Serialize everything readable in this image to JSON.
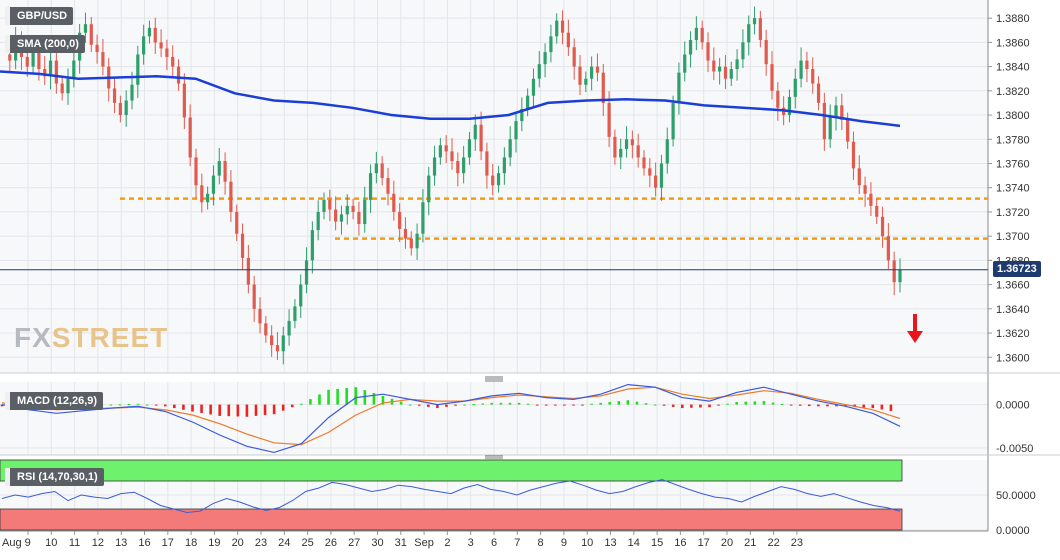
{
  "legend": {
    "pair": "GBP/USD",
    "sma": "SMA (200,0)",
    "macd": "MACD (12,26,9)",
    "rsi": "RSI (14,70,30,1)"
  },
  "watermark": {
    "brand_fx": "FX",
    "brand_street": "STREET"
  },
  "current_price": "1.36723",
  "colors": {
    "bull": "#2e9e6b",
    "bear": "#e05a4e",
    "sma": "#1a3ed6",
    "level": "#f39c12",
    "macd_line": "#3b5bdb",
    "signal_line": "#f07a2a",
    "hist_pos": "#22dd22",
    "hist_neg": "#ee2222",
    "rsi_line": "#3b5bdb",
    "overbought_fill": "#6ef26e",
    "oversold_fill": "#f47a7a",
    "arrow": "#e8151b"
  },
  "chart_data": [
    {
      "type": "candlestick",
      "title": "GBP/USD",
      "x_tick_labels": [
        "Aug 9",
        "10",
        "11",
        "12",
        "13",
        "16",
        "17",
        "18",
        "19",
        "20",
        "23",
        "24",
        "25",
        "26",
        "27",
        "30",
        "31",
        "Sep",
        "2",
        "3",
        "6",
        "7",
        "8",
        "9",
        "10",
        "13",
        "14",
        "15",
        "16",
        "17",
        "20",
        "21",
        "22",
        "23"
      ],
      "y_ticks": [
        "1.3880",
        "1.3860",
        "1.3840",
        "1.3820",
        "1.3800",
        "1.3780",
        "1.3760",
        "1.3740",
        "1.3720",
        "1.3700",
        "1.3680",
        "1.3660",
        "1.3640",
        "1.3620",
        "1.3600"
      ],
      "ylim": [
        1.3587,
        1.3895
      ],
      "close_path": [
        1.385,
        1.3845,
        1.3862,
        1.3848,
        1.384,
        1.3855,
        1.3838,
        1.3832,
        1.3845,
        1.3826,
        1.3818,
        1.383,
        1.3845,
        1.3868,
        1.3875,
        1.3858,
        1.3852,
        1.384,
        1.3822,
        1.381,
        1.38,
        1.3812,
        1.3825,
        1.385,
        1.3865,
        1.3872,
        1.386,
        1.3855,
        1.3848,
        1.384,
        1.3826,
        1.3798,
        1.3765,
        1.3742,
        1.3728,
        1.3735,
        1.375,
        1.3762,
        1.3745,
        1.372,
        1.3702,
        1.3682,
        1.366,
        1.364,
        1.3628,
        1.3618,
        1.361,
        1.3605,
        1.3618,
        1.363,
        1.3642,
        1.366,
        1.368,
        1.3705,
        1.372,
        1.373,
        1.3722,
        1.3712,
        1.3718,
        1.3725,
        1.372,
        1.371,
        1.373,
        1.3752,
        1.376,
        1.3748,
        1.3735,
        1.372,
        1.3706,
        1.3698,
        1.369,
        1.3702,
        1.3728,
        1.375,
        1.3765,
        1.3775,
        1.377,
        1.3762,
        1.3752,
        1.3765,
        1.378,
        1.3792,
        1.377,
        1.375,
        1.3742,
        1.3752,
        1.3765,
        1.378,
        1.3795,
        1.3805,
        1.3816,
        1.383,
        1.3842,
        1.3852,
        1.3865,
        1.3878,
        1.3868,
        1.3856,
        1.384,
        1.3825,
        1.383,
        1.384,
        1.3835,
        1.381,
        1.3782,
        1.3765,
        1.3772,
        1.378,
        1.3775,
        1.3765,
        1.3756,
        1.375,
        1.374,
        1.376,
        1.378,
        1.381,
        1.3835,
        1.385,
        1.3862,
        1.3872,
        1.386,
        1.3845,
        1.3836,
        1.384,
        1.383,
        1.3838,
        1.3846,
        1.386,
        1.3875,
        1.388,
        1.3862,
        1.3842,
        1.382,
        1.3806,
        1.38,
        1.3815,
        1.383,
        1.3845,
        1.3838,
        1.3826,
        1.381,
        1.378,
        1.3798,
        1.3808,
        1.3796,
        1.3778,
        1.3756,
        1.3742,
        1.3735,
        1.3725,
        1.3716,
        1.37,
        1.368,
        1.3662,
        1.3672
      ],
      "sma_200": [
        1.3836,
        1.3834,
        1.383,
        1.3831,
        1.3832,
        1.383,
        1.3818,
        1.3812,
        1.381,
        1.3806,
        1.38,
        1.3797,
        1.3797,
        1.38,
        1.381,
        1.3812,
        1.3813,
        1.3812,
        1.3808,
        1.3806,
        1.3804,
        1.38,
        1.3795,
        1.3791
      ],
      "horizontal_levels": [
        1.3731,
        1.3698
      ],
      "last_price": 1.36723
    },
    {
      "type": "macd",
      "title": "MACD (12,26,9)",
      "y_ticks": [
        "0.0000",
        "-0.0050"
      ],
      "ylim": [
        -0.0058,
        0.0026
      ],
      "macd": [
        0.0,
        -0.0006,
        -0.001,
        -0.0007,
        -0.0004,
        -0.0002,
        -0.0008,
        -0.002,
        -0.0035,
        -0.0048,
        -0.0055,
        -0.0045,
        -0.0015,
        0.0008,
        0.0012,
        0.0006,
        0.0,
        0.0004,
        0.001,
        0.0013,
        0.0008,
        0.0006,
        0.0012,
        0.0023,
        0.002,
        0.0008,
        0.0004,
        0.0014,
        0.002,
        0.0012,
        0.0004,
        -0.0002,
        -0.001,
        -0.0025
      ],
      "signal": [
        0.0002,
        -0.0002,
        -0.0006,
        -0.0005,
        -0.0004,
        -0.0003,
        -0.0006,
        -0.0012,
        -0.0022,
        -0.0034,
        -0.0044,
        -0.0046,
        -0.0032,
        -0.0012,
        0.0002,
        0.0006,
        0.0004,
        0.0004,
        0.0008,
        0.0011,
        0.0009,
        0.0007,
        0.001,
        0.0018,
        0.002,
        0.0012,
        0.0007,
        0.0011,
        0.0016,
        0.0013,
        0.0006,
        0.0,
        -0.0006,
        -0.0016
      ]
    },
    {
      "type": "line",
      "title": "RSI (14,70,30,1)",
      "y_ticks": [
        "50.0000",
        "0.0000"
      ],
      "ylim": [
        0,
        100
      ],
      "overbought": 70,
      "oversold": 30,
      "values": [
        45,
        50,
        47,
        52,
        55,
        42,
        50,
        47,
        45,
        52,
        54,
        45,
        35,
        30,
        25,
        27,
        38,
        45,
        40,
        33,
        28,
        32,
        42,
        55,
        60,
        68,
        65,
        60,
        55,
        58,
        64,
        62,
        58,
        55,
        52,
        60,
        65,
        58,
        55,
        50,
        57,
        62,
        67,
        70,
        64,
        57,
        52,
        55,
        62,
        68,
        72,
        65,
        58,
        52,
        47,
        45,
        40,
        48,
        55,
        62,
        58,
        52,
        48,
        52,
        46,
        40,
        35,
        32,
        27
      ]
    }
  ]
}
